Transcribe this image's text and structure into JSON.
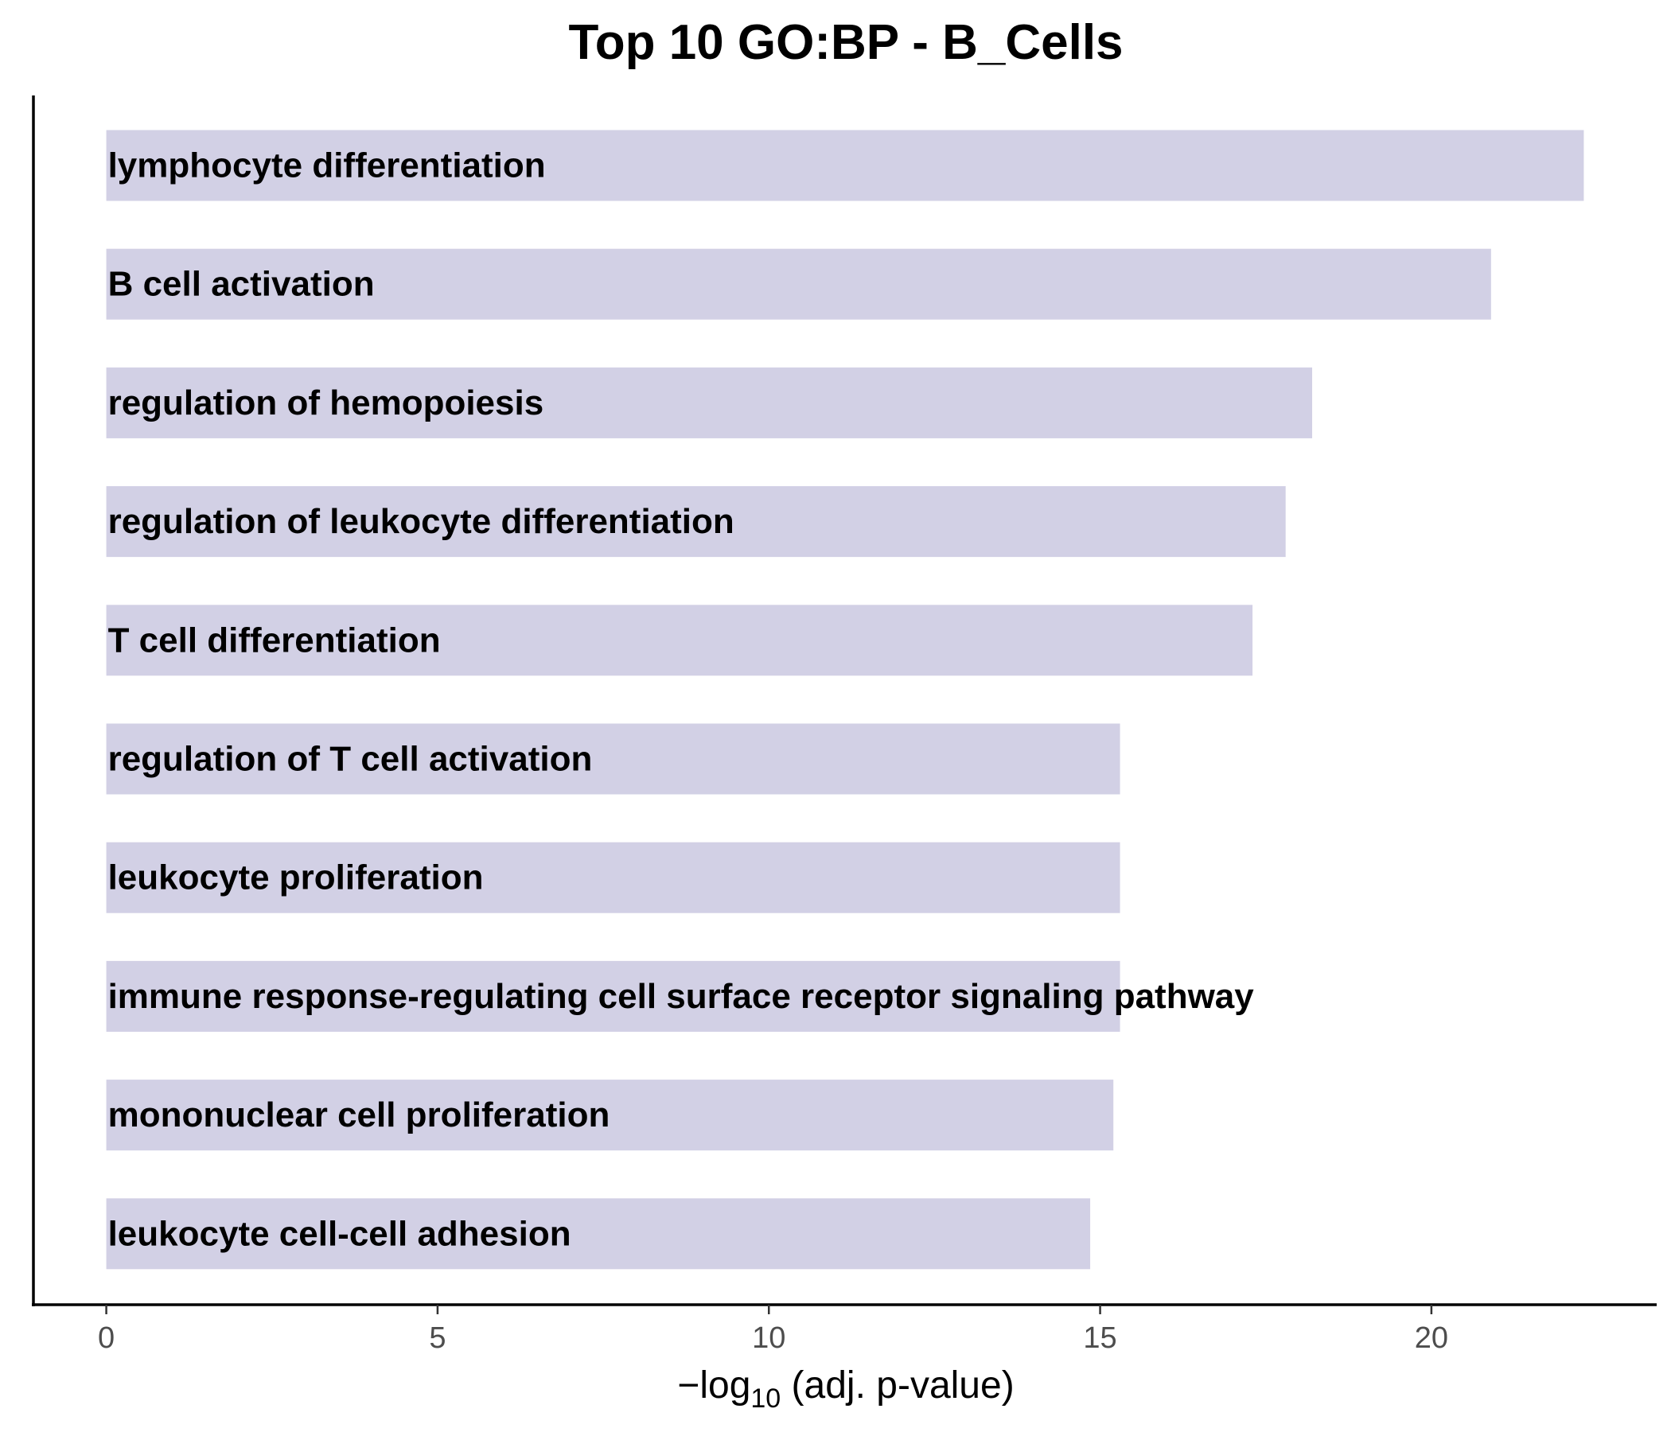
{
  "chart_data": {
    "type": "bar",
    "orientation": "horizontal",
    "title": "Top 10 GO:BP - B_Cells",
    "xlabel": {
      "prefix": "−log",
      "subscript": "10",
      "suffix": " (adj. p-value)"
    },
    "ylabel": "",
    "xlim": [
      -1.1,
      23.4
    ],
    "xticks": [
      0,
      5,
      10,
      15,
      20
    ],
    "grid": false,
    "bar_color": "#d2d0e5",
    "categories": [
      "lymphocyte differentiation",
      "B cell activation",
      "regulation of hemopoiesis",
      "regulation of leukocyte differentiation",
      "T cell differentiation",
      "regulation of T cell activation",
      "leukocyte proliferation",
      "immune response-regulating cell surface receptor signaling pathway",
      "mononuclear cell proliferation",
      "leukocyte cell-cell adhesion"
    ],
    "values": [
      22.3,
      20.9,
      18.2,
      17.8,
      17.3,
      15.3,
      15.3,
      15.3,
      15.2,
      14.85
    ]
  }
}
